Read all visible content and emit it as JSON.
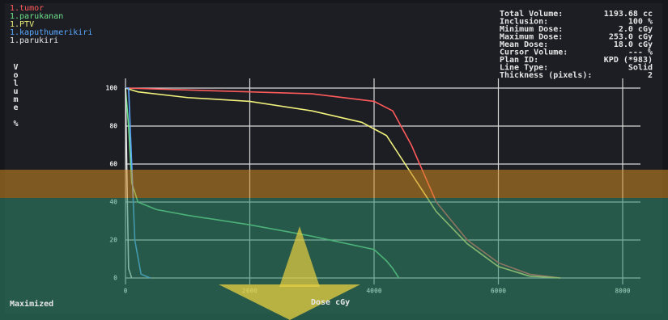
{
  "chart_data": {
    "type": "line",
    "x_label": "Dose cGy",
    "y_label": "Volume %",
    "status": "Maximized",
    "info": [
      {
        "label": "Total Volume:",
        "value": "1193.68 cc"
      },
      {
        "label": "Inclusion:",
        "value": "100 %"
      },
      {
        "label": "Minimum Dose:",
        "value": "2.0 cGy"
      },
      {
        "label": "Maximum Dose:",
        "value": "253.0 cGy"
      },
      {
        "label": "Mean Dose:",
        "value": "18.0 cGy"
      },
      {
        "label": "Cursor Volume:",
        "value": "--- %"
      },
      {
        "label": "Plan ID:",
        "value": "KPD (*983)"
      },
      {
        "label": "Line Type:",
        "value": "Solid"
      },
      {
        "label": "Thickness (pixels):",
        "value": "2"
      }
    ],
    "xlim": [
      0,
      8000
    ],
    "ylim": [
      0,
      100
    ],
    "xticks": [
      0,
      2000,
      4000,
      6000,
      8000
    ],
    "yticks": [
      0,
      20,
      40,
      60,
      80,
      100
    ],
    "grid": true,
    "series": [
      {
        "name": "1.tumor",
        "color": "#ff5a5a",
        "x": [
          0,
          1000,
          2000,
          3000,
          4000,
          4300,
          4600,
          5000,
          5500,
          6000,
          6500,
          7000
        ],
        "values": [
          100,
          99,
          98,
          97,
          93,
          88,
          70,
          40,
          20,
          8,
          2,
          0
        ]
      },
      {
        "name": "1.parukanan",
        "color": "#6fe08a",
        "x": [
          0,
          50,
          100,
          200,
          500,
          1000,
          2000,
          3000,
          4000,
          4200,
          4300,
          4400
        ],
        "values": [
          100,
          80,
          50,
          40,
          36,
          33,
          28,
          22,
          15,
          9,
          5,
          0
        ]
      },
      {
        "name": "1.PTV",
        "color": "#f0f07a",
        "x": [
          0,
          200,
          1000,
          2000,
          3000,
          3800,
          4200,
          4600,
          5000,
          5500,
          6000,
          6500,
          7000
        ],
        "values": [
          100,
          98,
          95,
          93,
          88,
          82,
          75,
          55,
          35,
          18,
          6,
          1,
          0
        ]
      },
      {
        "name": "1.kaputhumerikiri",
        "color": "#5aa8ff",
        "x": [
          0,
          50,
          100,
          150,
          250,
          400
        ],
        "values": [
          100,
          100,
          60,
          20,
          2,
          0
        ]
      },
      {
        "name": "1.parukiri",
        "color": "#e8e8e8",
        "x": [
          0,
          30,
          50,
          100
        ],
        "values": [
          100,
          40,
          5,
          0
        ]
      }
    ]
  }
}
